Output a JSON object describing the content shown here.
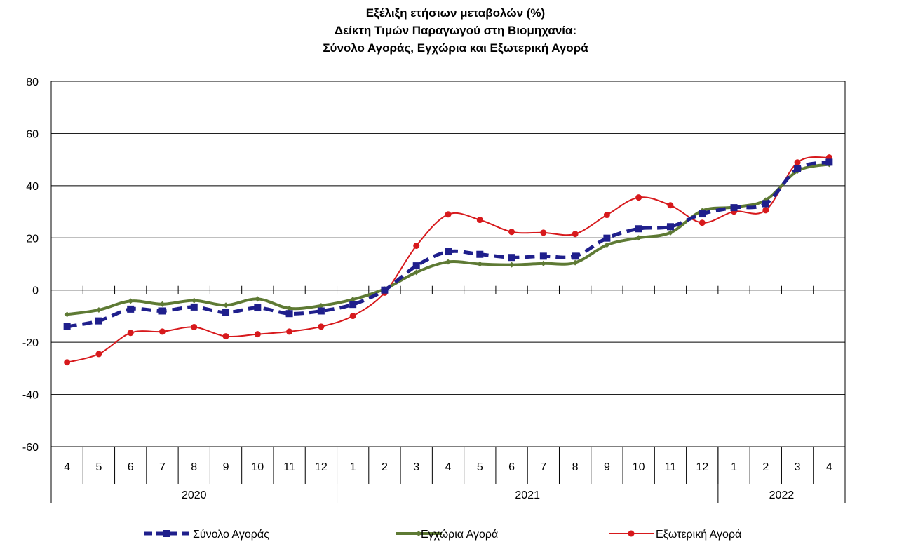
{
  "chart_data": {
    "type": "line",
    "title": [
      "Εξέλιξη ετήσιων μεταβολών (%)",
      "Δείκτη Τιμών Παραγωγού στη Βιομηχανία:",
      "Σύνολο Αγοράς, Εγχώρια και Εξωτερική Αγορά"
    ],
    "xlabel": "",
    "ylabel": "",
    "ylim": [
      -60,
      80
    ],
    "yticks": [
      "80",
      "60",
      "40",
      "20",
      "0",
      "-20",
      "-40",
      "-60"
    ],
    "grid": true,
    "legend_position": "bottom",
    "categories": [
      "4",
      "5",
      "6",
      "7",
      "8",
      "9",
      "10",
      "11",
      "12",
      "1",
      "2",
      "3",
      "4",
      "5",
      "6",
      "7",
      "8",
      "9",
      "10",
      "11",
      "12",
      "1",
      "2",
      "3",
      "4"
    ],
    "year_groups": [
      {
        "label": "2020",
        "count": 9
      },
      {
        "label": "2021",
        "count": 12
      },
      {
        "label": "2022",
        "count": 4
      }
    ],
    "series": [
      {
        "name": "Σύνολο Αγοράς",
        "color": "#1F1F8C",
        "style": "dashed-square",
        "values": [
          -14,
          -11.8,
          -7.3,
          -8,
          -6.5,
          -8.6,
          -6.8,
          -9,
          -8,
          -5.5,
          0,
          9.3,
          14.7,
          13.7,
          12.5,
          13,
          13,
          19.9,
          23.5,
          24.3,
          29.2,
          31.6,
          33.1,
          46.5,
          49
        ]
      },
      {
        "name": "Εγχώρια Αγορά",
        "color": "#5E7A34",
        "style": "solid-diamond",
        "values": [
          -9.3,
          -7.6,
          -4.2,
          -5.4,
          -4,
          -5.8,
          -3.4,
          -7,
          -6,
          -3.6,
          0.4,
          6.8,
          10.8,
          10,
          9.7,
          10.2,
          10.5,
          17.3,
          20,
          22,
          30.4,
          31.8,
          34.5,
          45.6,
          48.2
        ]
      },
      {
        "name": "Εξωτερική Αγορά",
        "color": "#D7191C",
        "style": "solid-circle",
        "values": [
          -27.7,
          -24.5,
          -16.4,
          -15.9,
          -14.2,
          -17.7,
          -16.9,
          -15.9,
          -14,
          -9.9,
          -1,
          17,
          29,
          26.9,
          22.3,
          22,
          21.5,
          28.8,
          35.5,
          32.5,
          25.8,
          30.1,
          30.6,
          48.9,
          50.8
        ]
      }
    ]
  }
}
